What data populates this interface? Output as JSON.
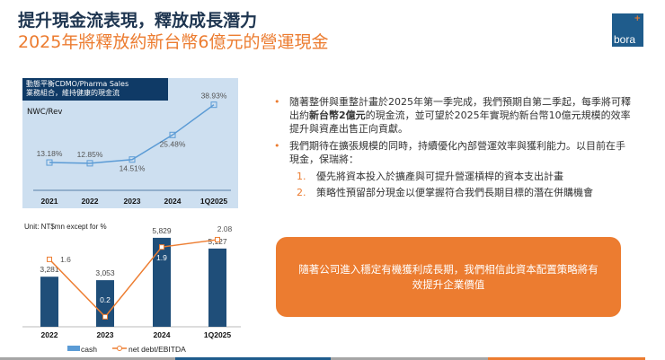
{
  "header": {
    "title": "提升現金流表現，釋放成長潛力",
    "subtitle": "2025年將釋放約新台幣6億元的營運現金",
    "logo_text": "bora"
  },
  "chart_data": [
    {
      "type": "line",
      "title": "動態平衡CDMO/Pharma Sales 業務組合，維持健康的現金流",
      "title_line1": "動態平衡CDMO/Pharma Sales",
      "title_line2": "業務組合，維持健康的現金流",
      "ylabel": "NWC/Rev",
      "categories": [
        "2021",
        "2022",
        "2023",
        "2024",
        "1Q2025"
      ],
      "values": [
        13.18,
        12.85,
        14.51,
        25.48,
        38.93
      ],
      "labels": [
        "13.18%",
        "12.85%",
        "14.51%",
        "25.48%",
        "38.93%"
      ],
      "colors": {
        "line": "#5b9bd5",
        "bg": "#cddff0"
      }
    },
    {
      "type": "bar",
      "unit_note": "Unit: NT$mn except for %",
      "categories": [
        "2022",
        "2023",
        "2024",
        "1Q2025"
      ],
      "series": [
        {
          "name": "cash",
          "type": "bar",
          "values": [
            3281,
            3053,
            5829,
            5127
          ],
          "labels": [
            "3,281",
            "3,053",
            "5,829",
            "5,127"
          ],
          "color": "#1f4e79"
        },
        {
          "name": "net debt/EBITDA",
          "type": "line",
          "values": [
            1.6,
            0.2,
            1.9,
            2.08
          ],
          "labels": [
            "1.6",
            "0.2",
            "1.9",
            "2.08"
          ],
          "color": "#ed7d31"
        }
      ],
      "legend": "bottom"
    }
  ],
  "bullets": [
    {
      "pre": "隨著整併與重整計畫於2025年第一季完成，我們預期自第二季起，每季將可釋出約",
      "bold": "新台幣2億元",
      "post": "的現金流，並可望於2025年實現約新台幣10億元規模的效率提升與資產出售正向貢獻。"
    },
    {
      "text": "我們期待在擴張規模的同時，持續優化內部營運效率與獲利能力。以目前在手現金，保瑞將："
    }
  ],
  "sub_items": [
    {
      "num": "1.",
      "text": "優先將資本投入於擴產與可提升營運槓桿的資本支出計畫"
    },
    {
      "num": "2.",
      "text": "策略性預留部分現金以便掌握符合我們長期目標的潛在併購機會"
    }
  ],
  "callout": "隨著公司進入穩定有機獲利成長期，我們相信此資本配置策略將有效提升企業價值",
  "colors": {
    "navy": "#1e3550",
    "orange": "#ec7c30",
    "blue": "#1f5c8c"
  }
}
